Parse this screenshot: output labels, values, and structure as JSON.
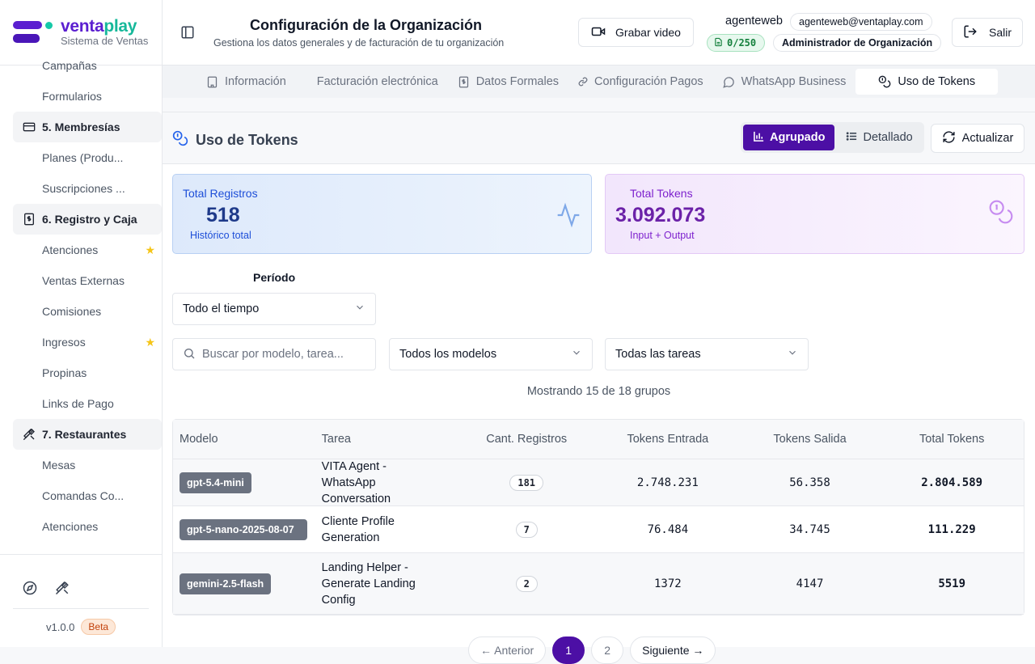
{
  "brand": {
    "name_left": "venta",
    "name_right": "play",
    "subtitle": "Sistema de Ventas"
  },
  "sidebar": {
    "items": [
      {
        "type": "item",
        "label": "Campañas"
      },
      {
        "type": "item",
        "label": "Formularios"
      },
      {
        "type": "section",
        "label": "5. Membresías",
        "icon": "card-icon"
      },
      {
        "type": "item",
        "label": "Planes (Produ..."
      },
      {
        "type": "item",
        "label": "Suscripciones ..."
      },
      {
        "type": "section",
        "label": "6. Registro y Caja",
        "icon": "cash-register-icon"
      },
      {
        "type": "item",
        "label": "Atenciones",
        "star": true
      },
      {
        "type": "item",
        "label": "Ventas Externas"
      },
      {
        "type": "item",
        "label": "Comisiones"
      },
      {
        "type": "item",
        "label": "Ingresos",
        "star": true
      },
      {
        "type": "item",
        "label": "Propinas"
      },
      {
        "type": "item",
        "label": "Links de Pago"
      },
      {
        "type": "section",
        "label": "7. Restaurantes",
        "icon": "utensils-icon"
      },
      {
        "type": "item",
        "label": "Mesas"
      },
      {
        "type": "item",
        "label": "Comandas Co..."
      },
      {
        "type": "item",
        "label": "Atenciones"
      }
    ],
    "version": "v1.0.0",
    "beta": "Beta"
  },
  "header": {
    "title": "Configuración de la Organización",
    "subtitle": "Gestiona los datos generales y de facturación de tu organización",
    "record_label": "Grabar video",
    "user_name": "agenteweb",
    "user_email": "agenteweb@ventaplay.com",
    "quota": "0/250",
    "role": "Administrador de Organización",
    "logout_label": "Salir"
  },
  "tabs": [
    {
      "label": "Información",
      "icon": "building-icon"
    },
    {
      "label": "Facturación electrónica",
      "icon": ""
    },
    {
      "label": "Datos Formales",
      "icon": "document-dollar-icon"
    },
    {
      "label": "Configuración Pagos",
      "icon": "link-icon"
    },
    {
      "label": "WhatsApp Business",
      "icon": "chat-icon"
    },
    {
      "label": "Uso de Tokens",
      "icon": "coins-icon",
      "active": true
    }
  ],
  "card": {
    "title": "Uso de Tokens",
    "view_grouped": "Agrupado",
    "view_detailed": "Detallado",
    "refresh": "Actualizar"
  },
  "stats": {
    "total_records_label": "Total Registros",
    "total_records_value": "518",
    "total_records_sub": "Histórico total",
    "total_tokens_label": "Total Tokens",
    "total_tokens_value": "3.092.073",
    "total_tokens_sub": "Input + Output"
  },
  "filters": {
    "period_label": "Período",
    "period_value": "Todo el tiempo",
    "search_placeholder": "Buscar por modelo, tarea...",
    "model_value": "Todos los modelos",
    "task_value": "Todas las tareas",
    "showing": "Mostrando 15 de 18 grupos"
  },
  "table": {
    "headers": [
      "Modelo",
      "Tarea",
      "Cant. Registros",
      "Tokens Entrada",
      "Tokens Salida",
      "Total Tokens"
    ],
    "rows": [
      {
        "model": "gpt-5.4-mini",
        "task": "VITA Agent - WhatsApp Conversation",
        "count": "181",
        "in": "2.748.231",
        "out": "56.358",
        "total": "2.804.589"
      },
      {
        "model": "gpt-5-nano-2025-08-07",
        "task": "Cliente Profile Generation",
        "count": "7",
        "in": "76.484",
        "out": "34.745",
        "total": "111.229"
      },
      {
        "model": "gemini-2.5-flash",
        "task": "Landing Helper - Generate Landing Config",
        "count": "2",
        "in": "1372",
        "out": "4147",
        "total": "5519"
      }
    ]
  },
  "pagination": {
    "prev": "← Anterior",
    "pages": [
      "1",
      "2"
    ],
    "next": "Siguiente →"
  },
  "colors": {
    "accent": "#4c0fa5",
    "brand_teal": "#16b89a",
    "brand_purple": "#5b1fd0"
  }
}
